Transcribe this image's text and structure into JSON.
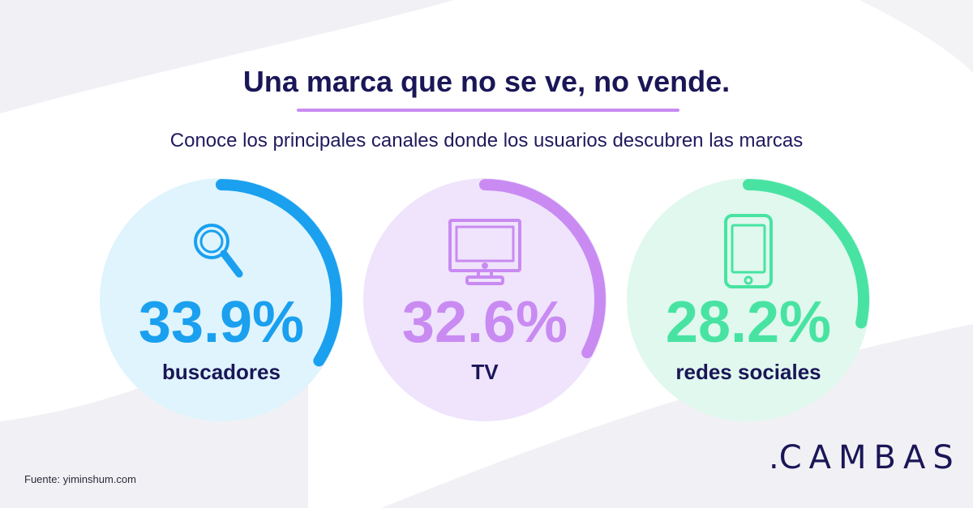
{
  "header": {
    "title": "Una marca que no se ve, no vende.",
    "subtitle": "Conoce los principales canales donde los usuarios descubren las marcas"
  },
  "chart_data": {
    "type": "pie",
    "unit": "%",
    "max": 100,
    "items": [
      {
        "value_label": "33.9%",
        "value": 33.9,
        "label": "buscadores",
        "icon": "magnifier-icon",
        "color": "#1aa0ef",
        "fill": "#dff4fd"
      },
      {
        "value_label": "32.6%",
        "value": 32.6,
        "label": "TV",
        "icon": "tv-icon",
        "color": "#c98bf2",
        "fill": "#efe4fc"
      },
      {
        "value_label": "28.2%",
        "value": 28.2,
        "label": "redes sociales",
        "icon": "smartphone-icon",
        "color": "#48e3a2",
        "fill": "#e0f8ee"
      }
    ]
  },
  "footer": {
    "source": "Fuente: yiminshum.com",
    "brand_dot": ".",
    "brand": "CAMBAS"
  }
}
